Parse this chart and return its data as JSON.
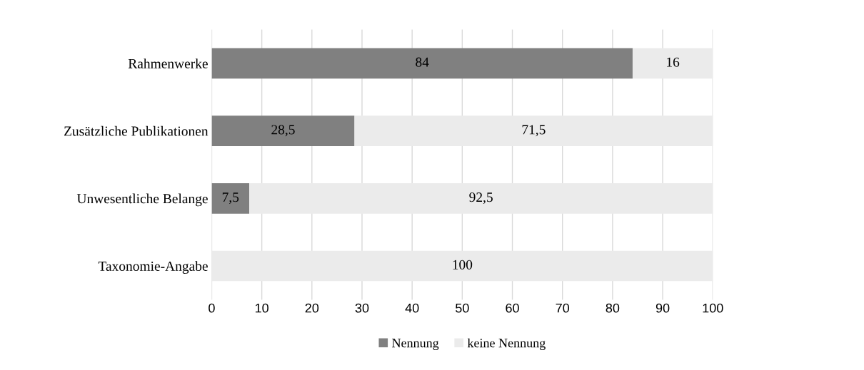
{
  "chart_data": {
    "type": "bar",
    "orientation": "horizontal",
    "stacked": true,
    "categories": [
      "Rahmenwerke",
      "Zusätzliche Publikationen",
      "Unwesentliche Belange",
      "Taxonomie-Angabe"
    ],
    "series": [
      {
        "name": "Nennung",
        "color": "#808080",
        "values": [
          84,
          28.5,
          7.5,
          0
        ],
        "value_labels": [
          "84",
          "28,5",
          "7,5",
          null
        ]
      },
      {
        "name": "keine Nennung",
        "color": "#ebebeb",
        "values": [
          16,
          71.5,
          92.5,
          100
        ],
        "value_labels": [
          "16",
          "71,5",
          "92,5",
          "100"
        ]
      }
    ],
    "xlim": [
      0,
      100
    ],
    "xticks": [
      0,
      10,
      20,
      30,
      40,
      50,
      60,
      70,
      80,
      90,
      100
    ],
    "grid": "x",
    "legend": "bottom"
  }
}
